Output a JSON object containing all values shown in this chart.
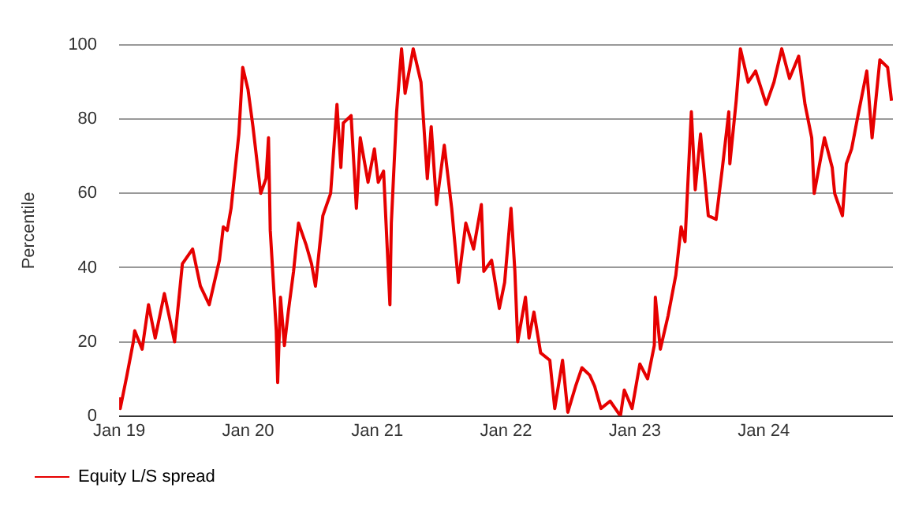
{
  "chart_data": {
    "type": "line",
    "ylabel": "Percentile",
    "x": [
      "2019-01-01",
      "2019-01-04",
      "2019-01-23",
      "2019-02-10",
      "2019-02-14",
      "2019-03-07",
      "2019-03-25",
      "2019-04-13",
      "2019-05-09",
      "2019-06-07",
      "2019-06-29",
      "2019-07-28",
      "2019-08-19",
      "2019-09-13",
      "2019-10-12",
      "2019-10-23",
      "2019-11-03",
      "2019-11-14",
      "2019-12-06",
      "2019-12-17",
      "2020-01-01",
      "2020-01-15",
      "2020-02-06",
      "2020-02-21",
      "2020-02-28",
      "2020-03-04",
      "2020-03-21",
      "2020-03-25",
      "2020-04-02",
      "2020-04-13",
      "2020-04-24",
      "2020-05-09",
      "2020-05-23",
      "2020-06-14",
      "2020-06-29",
      "2020-07-10",
      "2020-07-31",
      "2020-08-22",
      "2020-09-09",
      "2020-09-20",
      "2020-09-27",
      "2020-10-19",
      "2020-11-03",
      "2020-11-14",
      "2020-12-06",
      "2020-12-24",
      "2021-01-04",
      "2021-01-19",
      "2021-02-06",
      "2021-02-10",
      "2021-02-25",
      "2021-03-11",
      "2021-03-21",
      "2021-04-13",
      "2021-05-05",
      "2021-05-23",
      "2021-06-03",
      "2021-06-18",
      "2021-07-10",
      "2021-07-31",
      "2021-08-19",
      "2021-09-09",
      "2021-10-01",
      "2021-10-23",
      "2021-10-30",
      "2021-11-21",
      "2021-12-13",
      "2021-12-28",
      "2022-01-15",
      "2022-01-26",
      "2022-02-03",
      "2022-02-25",
      "2022-03-07",
      "2022-03-21",
      "2022-04-09",
      "2022-05-05",
      "2022-05-19",
      "2022-06-10",
      "2022-06-25",
      "2022-07-17",
      "2022-08-04",
      "2022-08-26",
      "2022-09-09",
      "2022-09-27",
      "2022-10-23",
      "2022-11-21",
      "2022-12-02",
      "2022-12-24",
      "2023-01-15",
      "2023-02-06",
      "2023-02-25",
      "2023-02-28",
      "2023-03-14",
      "2023-04-05",
      "2023-04-27",
      "2023-05-12",
      "2023-05-23",
      "2023-06-10",
      "2023-06-21",
      "2023-07-06",
      "2023-07-28",
      "2023-08-19",
      "2023-09-06",
      "2023-09-24",
      "2023-09-27",
      "2023-10-15",
      "2023-10-27",
      "2023-11-18",
      "2023-12-09",
      "2024-01-08",
      "2024-01-30",
      "2024-02-21",
      "2024-03-14",
      "2024-04-09",
      "2024-04-27",
      "2024-05-16",
      "2024-05-23",
      "2024-06-21",
      "2024-07-13",
      "2024-07-20",
      "2024-08-11",
      "2024-08-22",
      "2024-09-06",
      "2024-09-24",
      "2024-10-19",
      "2024-11-03",
      "2024-11-25",
      "2024-12-17",
      "2024-12-28"
    ],
    "series": [
      {
        "name": "Equity L/S spread",
        "color": "#e60000",
        "values": [
          5,
          2,
          11,
          20,
          23,
          18,
          30,
          21,
          33,
          20,
          41,
          45,
          35,
          30,
          42,
          51,
          50,
          56,
          76,
          94,
          88,
          78,
          60,
          64,
          75,
          50,
          23,
          9,
          32,
          19,
          28,
          39,
          52,
          46,
          41,
          35,
          54,
          60,
          84,
          67,
          79,
          81,
          56,
          75,
          63,
          72,
          63,
          66,
          30,
          52,
          82,
          99,
          87,
          99,
          90,
          64,
          78,
          57,
          73,
          56,
          36,
          52,
          45,
          57,
          39,
          42,
          29,
          36,
          56,
          39,
          20,
          32,
          21,
          28,
          17,
          15,
          2,
          15,
          1,
          8,
          13,
          11,
          8,
          2,
          4,
          0,
          7,
          2,
          14,
          10,
          19,
          32,
          18,
          27,
          38,
          51,
          47,
          82,
          61,
          76,
          54,
          53,
          67,
          82,
          68,
          85,
          99,
          90,
          93,
          84,
          90,
          99,
          91,
          97,
          84,
          75,
          60,
          75,
          67,
          60,
          54,
          68,
          72,
          81,
          93,
          75,
          96,
          94,
          85
        ]
      }
    ],
    "xlim": [
      "2019-01-01",
      "2025-01-01"
    ],
    "xticks": [
      {
        "value": "2019-01-01",
        "label": "Jan 19"
      },
      {
        "value": "2020-01-01",
        "label": "Jan 20"
      },
      {
        "value": "2021-01-01",
        "label": "Jan 21"
      },
      {
        "value": "2022-01-01",
        "label": "Jan 22"
      },
      {
        "value": "2023-01-01",
        "label": "Jan 23"
      },
      {
        "value": "2024-01-01",
        "label": "Jan 24"
      }
    ],
    "ylim": [
      0,
      100
    ],
    "yticks": [
      0,
      20,
      40,
      60,
      80,
      100
    ],
    "grid": "y",
    "legend": "bottom left",
    "marker": "none",
    "line_style": "solid"
  }
}
